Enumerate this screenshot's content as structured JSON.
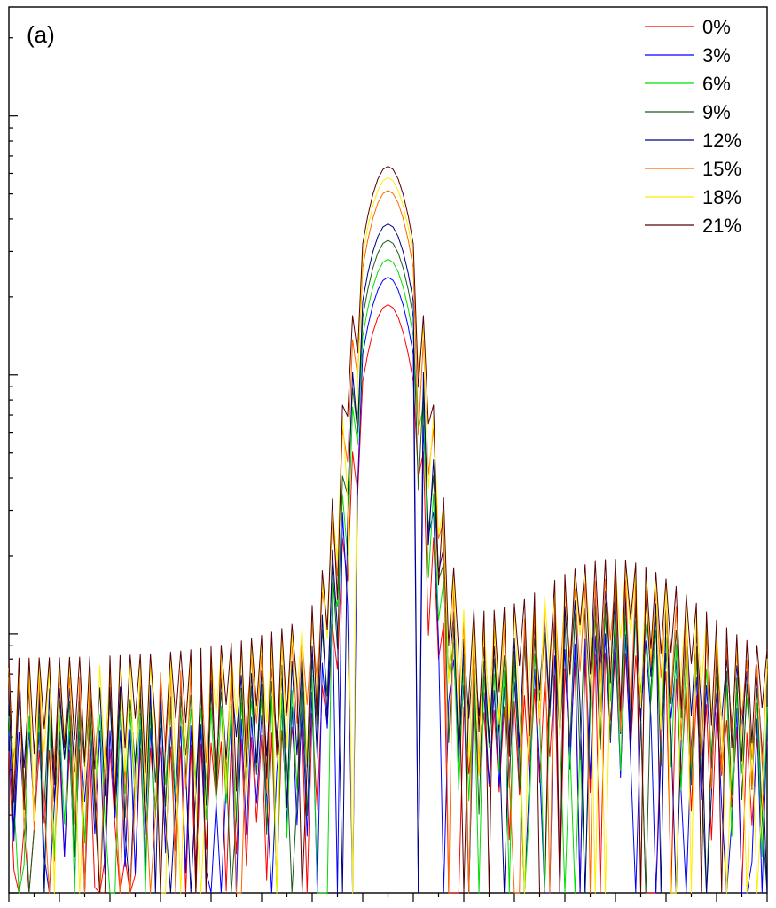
{
  "chart_data": {
    "type": "line",
    "panel_label": "(a)",
    "y_scale": "log",
    "x_range": [
      0,
      150
    ],
    "y_decades": [
      1,
      10,
      100,
      1000
    ],
    "x_ticks_major": 10,
    "legend_placement": "top-right",
    "peak_index": 75,
    "series": [
      {
        "name": "0%",
        "color": "#ff0000",
        "peak": 180,
        "floor": 2.2,
        "seed": 11
      },
      {
        "name": "3%",
        "color": "#0000ff",
        "peak": 230,
        "floor": 2.6,
        "seed": 23
      },
      {
        "name": "6%",
        "color": "#00dd00",
        "peak": 270,
        "floor": 3.0,
        "seed": 37
      },
      {
        "name": "9%",
        "color": "#1a5a1a",
        "peak": 320,
        "floor": 3.4,
        "seed": 41
      },
      {
        "name": "12%",
        "color": "#000080",
        "peak": 370,
        "floor": 3.8,
        "seed": 53
      },
      {
        "name": "15%",
        "color": "#ff6600",
        "peak": 500,
        "floor": 4.2,
        "seed": 67
      },
      {
        "name": "18%",
        "color": "#ffee00",
        "peak": 560,
        "floor": 4.6,
        "seed": 79
      },
      {
        "name": "21%",
        "color": "#5a0000",
        "peak": 620,
        "floor": 5.0,
        "seed": 97
      }
    ]
  }
}
